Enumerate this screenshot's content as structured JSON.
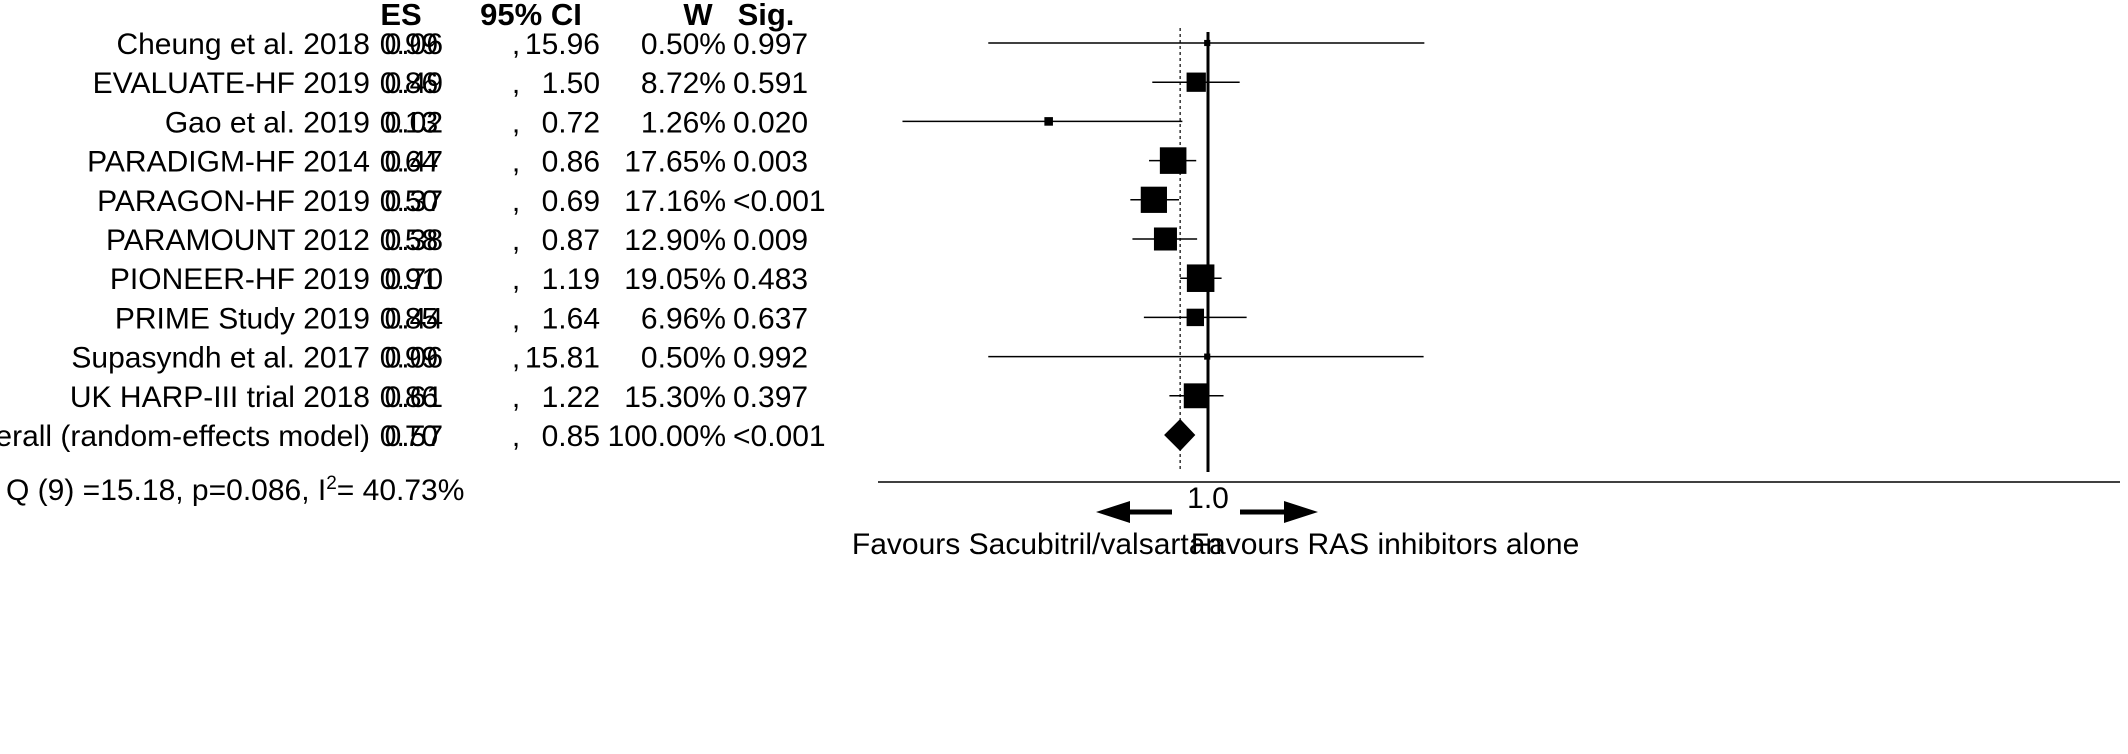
{
  "chart_data": {
    "type": "forest",
    "headers": {
      "es": "ES",
      "ci": "95% CI",
      "w": "W",
      "sig": "Sig."
    },
    "rows": [
      {
        "study": "Cheung et al. 2018",
        "es": 0.99,
        "ci_low": 0.06,
        "ci_high": 15.96,
        "es_text": "0.99",
        "ci_low_text": "0.06",
        "ci_high_text": "15.96",
        "w_text": "0.50%",
        "weight": 0.5,
        "sig_text": "0.997"
      },
      {
        "study": "EVALUATE-HF 2019",
        "es": 0.86,
        "ci_low": 0.49,
        "ci_high": 1.5,
        "es_text": "0.86",
        "ci_low_text": "0.49",
        "ci_high_text": "1.50",
        "w_text": "8.72%",
        "weight": 8.72,
        "sig_text": "0.591"
      },
      {
        "study": "Gao et al. 2019",
        "es": 0.13,
        "ci_low": 0.02,
        "ci_high": 0.72,
        "es_text": "0.13",
        "ci_low_text": "0.02",
        "ci_high_text": "0.72",
        "w_text": "1.26%",
        "weight": 1.26,
        "sig_text": "0.020"
      },
      {
        "study": "PARADIGM-HF 2014",
        "es": 0.64,
        "ci_low": 0.47,
        "ci_high": 0.86,
        "es_text": "0.64",
        "ci_low_text": "0.47",
        "ci_high_text": "0.86",
        "w_text": "17.65%",
        "weight": 17.65,
        "sig_text": "0.003"
      },
      {
        "study": "PARAGON-HF 2019",
        "es": 0.5,
        "ci_low": 0.37,
        "ci_high": 0.69,
        "es_text": "0.50",
        "ci_low_text": "0.37",
        "ci_high_text": "0.69",
        "w_text": "17.16%",
        "weight": 17.16,
        "sig_text": "<0.001"
      },
      {
        "study": "PARAMOUNT 2012",
        "es": 0.58,
        "ci_low": 0.38,
        "ci_high": 0.87,
        "es_text": "0.58",
        "ci_low_text": "0.38",
        "ci_high_text": "0.87",
        "w_text": "12.90%",
        "weight": 12.9,
        "sig_text": "0.009"
      },
      {
        "study": "PIONEER-HF  2019",
        "es": 0.91,
        "ci_low": 0.7,
        "ci_high": 1.19,
        "es_text": "0.91",
        "ci_low_text": "0.70",
        "ci_high_text": "1.19",
        "w_text": "19.05%",
        "weight": 19.05,
        "sig_text": "0.483"
      },
      {
        "study": "PRIME Study 2019",
        "es": 0.85,
        "ci_low": 0.44,
        "ci_high": 1.64,
        "es_text": "0.85",
        "ci_low_text": "0.44",
        "ci_high_text": "1.64",
        "w_text": "6.96%",
        "weight": 6.96,
        "sig_text": "0.637"
      },
      {
        "study": "Supasyndh et al.  2017",
        "es": 0.99,
        "ci_low": 0.06,
        "ci_high": 15.81,
        "es_text": "0.99",
        "ci_low_text": "0.06",
        "ci_high_text": "15.81",
        "w_text": "0.50%",
        "weight": 0.5,
        "sig_text": "0.992"
      },
      {
        "study": "UK HARP-III trial 2018",
        "es": 0.86,
        "ci_low": 0.61,
        "ci_high": 1.22,
        "es_text": "0.86",
        "ci_low_text": "0.61",
        "ci_high_text": "1.22",
        "w_text": "15.30%",
        "weight": 15.3,
        "sig_text": "0.397"
      }
    ],
    "overall": {
      "study": "Overall (random-effects model)",
      "es": 0.7,
      "ci_low": 0.57,
      "ci_high": 0.85,
      "es_text": "0.70",
      "ci_low_text": "0.57",
      "ci_high_text": "0.85",
      "w_text": "100.00%",
      "weight": 100.0,
      "sig_text": "<0.001"
    },
    "heterogeneity": {
      "prefix": "Q (9) =15.18, p=0.086, I",
      "sup": "2",
      "suffix": "= 40.73%"
    },
    "axis": {
      "scale": "log",
      "xlim": [
        0.015,
        20
      ],
      "reference_value": 1.0,
      "reference_label": "1.0",
      "overall_line_value": 0.7
    },
    "favours_left": "Favours Sacubitril/valsartan",
    "favours_right": "Favours RAS inhibitors alone"
  },
  "colors": {
    "ink": "#000000",
    "background": "#ffffff"
  },
  "icons": {
    "left_arrow": "left-arrow-icon",
    "right_arrow": "right-arrow-icon",
    "marker": "square",
    "overall_marker": "diamond"
  }
}
